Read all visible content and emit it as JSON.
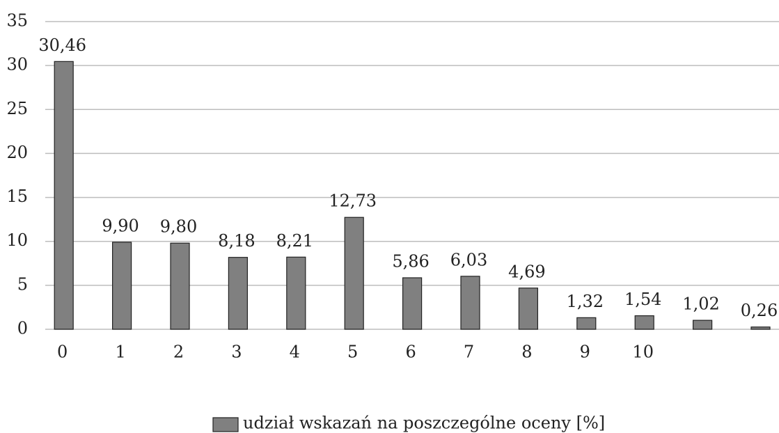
{
  "chart_data": {
    "type": "bar",
    "categories": [
      "0",
      "1",
      "2",
      "3",
      "4",
      "5",
      "6",
      "7",
      "8",
      "9",
      "10",
      null,
      null
    ],
    "series": [
      {
        "name": "udział wskazań na poszczególne oceny [%]",
        "color": "#808080",
        "values": [
          30.46,
          9.9,
          9.8,
          8.18,
          8.21,
          12.73,
          5.86,
          6.03,
          4.69,
          1.32,
          1.54,
          1.02,
          0.26
        ],
        "value_labels": [
          "30,46",
          "9,90",
          "9,80",
          "8,18",
          "8,21",
          "12,73",
          "5,86",
          "6,03",
          "4,69",
          "1,32",
          "1,54",
          "1,02",
          "0,26"
        ]
      }
    ],
    "ylim": [
      0,
      35
    ],
    "yticks": [
      0,
      5,
      10,
      15,
      20,
      25,
      30,
      35
    ],
    "grid": true,
    "legend": "bottom"
  }
}
